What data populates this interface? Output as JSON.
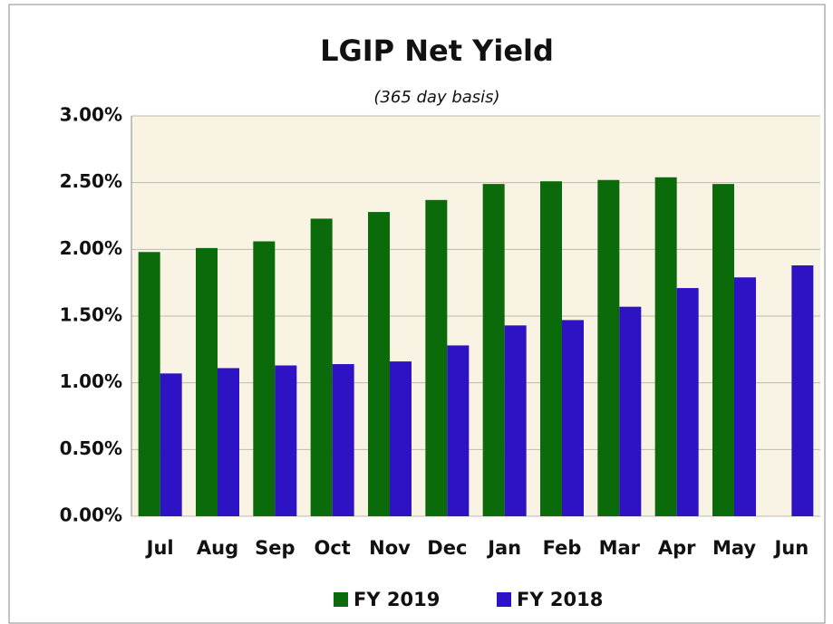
{
  "chart_data": {
    "type": "bar",
    "title": "LGIP Net Yield",
    "subtitle": "(365 day basis)",
    "categories": [
      "Jul",
      "Aug",
      "Sep",
      "Oct",
      "Nov",
      "Dec",
      "Jan",
      "Feb",
      "Mar",
      "Apr",
      "May",
      "Jun"
    ],
    "series": [
      {
        "name": "FY 2019",
        "color": "#0b6b0b",
        "values": [
          1.98,
          2.01,
          2.06,
          2.23,
          2.28,
          2.37,
          2.49,
          2.51,
          2.52,
          2.54,
          2.49,
          null
        ]
      },
      {
        "name": "FY 2018",
        "color": "#2e13c4",
        "values": [
          1.07,
          1.11,
          1.13,
          1.14,
          1.16,
          1.28,
          1.43,
          1.47,
          1.57,
          1.71,
          1.79,
          1.88
        ]
      }
    ],
    "ylim": [
      0,
      3
    ],
    "yticks": [
      {
        "value": 0,
        "label": "0.00%"
      },
      {
        "value": 0.5,
        "label": "0.50%"
      },
      {
        "value": 1,
        "label": "1.00%"
      },
      {
        "value": 1.5,
        "label": "1.50%"
      },
      {
        "value": 2,
        "label": "2.00%"
      },
      {
        "value": 2.5,
        "label": "2.50%"
      },
      {
        "value": 3,
        "label": "3.00%"
      }
    ],
    "grid": true,
    "legend": "bottom"
  }
}
